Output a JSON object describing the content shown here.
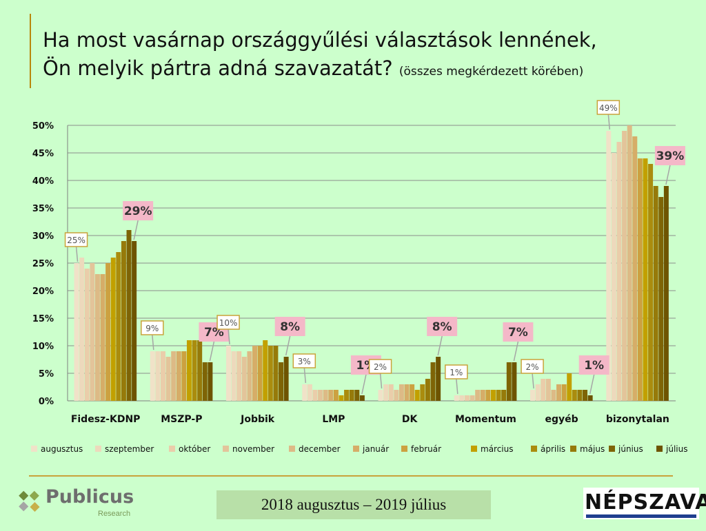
{
  "title": {
    "line1": "Ha most vasárnap országgyűlési választások lennének,",
    "line2": "Ön melyik pártra adná szavazatát?",
    "line2_sub": "(összes megkérdezett körében)"
  },
  "period_label": "2018 augusztus – 2019 július",
  "logos": {
    "left_name": "Publicus",
    "left_sub": "Research",
    "right_name": "NÉPSZAVA"
  },
  "chart_data": {
    "type": "bar",
    "title": "",
    "xlabel": "",
    "ylabel": "",
    "ylim": [
      0,
      50
    ],
    "y_ticks": [
      0,
      5,
      10,
      15,
      20,
      25,
      30,
      35,
      40,
      45,
      50
    ],
    "y_tick_labels": [
      "0%",
      "5%",
      "10%",
      "15%",
      "20%",
      "25%",
      "30%",
      "35%",
      "40%",
      "45%",
      "50%"
    ],
    "grid": true,
    "legend_position": "bottom",
    "categories": [
      "Fidesz-KDNP",
      "MSZP-P",
      "Jobbik",
      "LMP",
      "DK",
      "Momentum",
      "egyéb",
      "bizonytalan"
    ],
    "series": [
      {
        "name": "augusztus",
        "color": "#F0E2C8",
        "values": [
          25,
          9,
          10,
          3,
          2,
          1,
          2,
          49
        ]
      },
      {
        "name": "szeptember",
        "color": "#EDD9BC",
        "values": [
          26,
          9,
          9,
          3,
          3,
          1,
          3,
          45
        ]
      },
      {
        "name": "október",
        "color": "#EACDAA",
        "values": [
          24,
          9,
          9,
          2,
          3,
          1,
          4,
          47
        ]
      },
      {
        "name": "november",
        "color": "#E3C49A",
        "values": [
          25,
          8,
          8,
          2,
          2,
          1,
          4,
          49
        ]
      },
      {
        "name": "december",
        "color": "#DDBA86",
        "values": [
          23,
          9,
          9,
          2,
          3,
          2,
          2,
          50
        ]
      },
      {
        "name": "január",
        "color": "#D6AD68",
        "values": [
          23,
          9,
          10,
          2,
          3,
          2,
          3,
          48
        ]
      },
      {
        "name": "február",
        "color": "#CCA140",
        "values": [
          25,
          9,
          10,
          2,
          3,
          2,
          3,
          44
        ]
      },
      {
        "name": "március",
        "color": "#C2A000",
        "values": [
          26,
          11,
          11,
          1,
          2,
          2,
          5,
          44
        ]
      },
      {
        "name": "április",
        "color": "#AA8C0E",
        "values": [
          27,
          11,
          10,
          2,
          3,
          2,
          2,
          43
        ]
      },
      {
        "name": "május",
        "color": "#967A0A",
        "values": [
          29,
          11,
          10,
          2,
          4,
          2,
          2,
          39
        ]
      },
      {
        "name": "június",
        "color": "#7E6406",
        "values": [
          31,
          7,
          7,
          2,
          7,
          7,
          2,
          37
        ]
      },
      {
        "name": "július",
        "color": "#6E5400",
        "values": [
          29,
          7,
          8,
          1,
          8,
          7,
          1,
          39
        ]
      }
    ],
    "annotations_first": [
      "25%",
      "9%",
      "10%",
      "3%",
      "2%",
      "1%",
      "2%",
      "49%"
    ],
    "annotations_last": [
      "29%",
      "7%",
      "8%",
      "1%",
      "8%",
      "7%",
      "1%",
      "39%"
    ]
  }
}
